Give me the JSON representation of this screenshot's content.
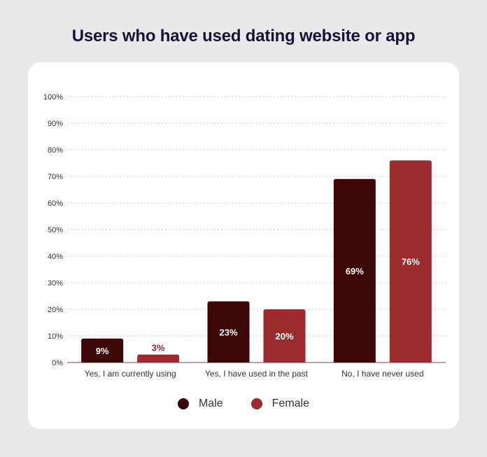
{
  "title": "Users who have used dating website or app",
  "colors": {
    "male": "#3b0709",
    "female": "#9b2b2f",
    "grid": "#c8c8c8",
    "axis": "#b77b7e"
  },
  "chart_data": {
    "type": "bar",
    "categories": [
      "Yes, I am currently using",
      "Yes, I have used in the past",
      "No, I have never used"
    ],
    "series": [
      {
        "name": "Male",
        "values": [
          9,
          23,
          69
        ],
        "labels": [
          "9%",
          "23%",
          "69%"
        ]
      },
      {
        "name": "Female",
        "values": [
          3,
          20,
          76
        ],
        "labels": [
          "3%",
          "20%",
          "76%"
        ]
      }
    ],
    "ylim": [
      0,
      100
    ],
    "yticks": [
      "0%",
      "10%",
      "20%",
      "30%",
      "40%",
      "50%",
      "60%",
      "70%",
      "80%",
      "90%",
      "100%"
    ],
    "grid": true,
    "legend": "bottom"
  }
}
